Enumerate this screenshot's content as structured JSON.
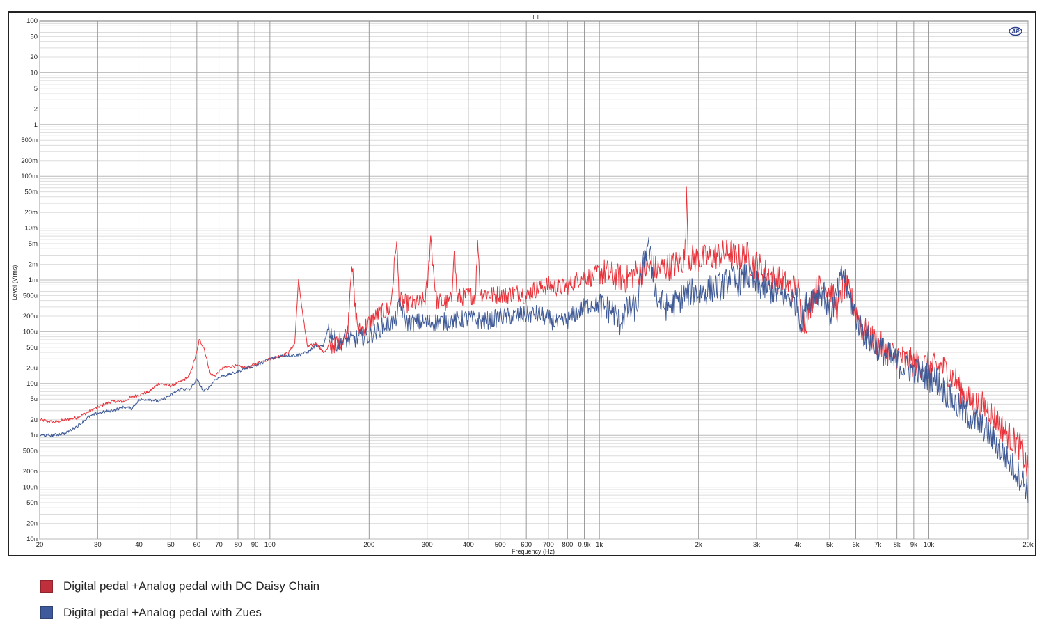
{
  "chart_data": {
    "type": "line",
    "title": "FFT",
    "xlabel": "Frequency (Hz)",
    "ylabel": "Level (Vrms)",
    "x_scale": "log",
    "y_scale": "log",
    "xlim": [
      20,
      20000
    ],
    "ylim": [
      1e-08,
      100
    ],
    "grid": true,
    "logo": "AP",
    "x_ticks": [
      {
        "v": 20,
        "label": "20"
      },
      {
        "v": 30,
        "label": "30"
      },
      {
        "v": 40,
        "label": "40"
      },
      {
        "v": 50,
        "label": "50"
      },
      {
        "v": 60,
        "label": "60"
      },
      {
        "v": 70,
        "label": "70"
      },
      {
        "v": 80,
        "label": "80"
      },
      {
        "v": 90,
        "label": "90"
      },
      {
        "v": 100,
        "label": "100"
      },
      {
        "v": 200,
        "label": "200"
      },
      {
        "v": 300,
        "label": "300"
      },
      {
        "v": 400,
        "label": "400"
      },
      {
        "v": 500,
        "label": "500"
      },
      {
        "v": 600,
        "label": "600"
      },
      {
        "v": 700,
        "label": "700"
      },
      {
        "v": 800,
        "label": "800"
      },
      {
        "v": 900,
        "label": "0.9k"
      },
      {
        "v": 1000,
        "label": "1k"
      },
      {
        "v": 2000,
        "label": "2k"
      },
      {
        "v": 3000,
        "label": "3k"
      },
      {
        "v": 4000,
        "label": "4k"
      },
      {
        "v": 5000,
        "label": "5k"
      },
      {
        "v": 6000,
        "label": "6k"
      },
      {
        "v": 7000,
        "label": "7k"
      },
      {
        "v": 8000,
        "label": "8k"
      },
      {
        "v": 9000,
        "label": "9k"
      },
      {
        "v": 10000,
        "label": "10k"
      },
      {
        "v": 20000,
        "label": "20k"
      }
    ],
    "y_ticks": [
      {
        "v": 100,
        "label": "100"
      },
      {
        "v": 50,
        "label": "50"
      },
      {
        "v": 20,
        "label": "20"
      },
      {
        "v": 10,
        "label": "10"
      },
      {
        "v": 5,
        "label": "5"
      },
      {
        "v": 2,
        "label": "2"
      },
      {
        "v": 1,
        "label": "1"
      },
      {
        "v": 0.5,
        "label": "500m"
      },
      {
        "v": 0.2,
        "label": "200m"
      },
      {
        "v": 0.1,
        "label": "100m"
      },
      {
        "v": 0.05,
        "label": "50m"
      },
      {
        "v": 0.02,
        "label": "20m"
      },
      {
        "v": 0.01,
        "label": "10m"
      },
      {
        "v": 0.005,
        "label": "5m"
      },
      {
        "v": 0.002,
        "label": "2m"
      },
      {
        "v": 0.001,
        "label": "1m"
      },
      {
        "v": 0.0005,
        "label": "500u"
      },
      {
        "v": 0.0002,
        "label": "200u"
      },
      {
        "v": 0.0001,
        "label": "100u"
      },
      {
        "v": 5e-05,
        "label": "50u"
      },
      {
        "v": 2e-05,
        "label": "20u"
      },
      {
        "v": 1e-05,
        "label": "10u"
      },
      {
        "v": 5e-06,
        "label": "5u"
      },
      {
        "v": 2e-06,
        "label": "2u"
      },
      {
        "v": 1e-06,
        "label": "1u"
      },
      {
        "v": 5e-07,
        "label": "500n"
      },
      {
        "v": 2e-07,
        "label": "200n"
      },
      {
        "v": 1e-07,
        "label": "100n"
      },
      {
        "v": 5e-08,
        "label": "50n"
      },
      {
        "v": 2e-08,
        "label": "20n"
      },
      {
        "v": 1e-08,
        "label": "10n"
      }
    ],
    "series": [
      {
        "name": "Digital pedal +Analog pedal with DC Daisy Chain",
        "color": "#e8333b",
        "x": [
          20,
          22,
          24,
          26,
          28,
          30,
          33,
          36,
          38,
          40,
          43,
          46,
          50,
          54,
          57,
          60,
          61,
          63,
          66,
          68,
          72,
          78,
          85,
          92,
          100,
          105,
          110,
          114,
          119,
          122,
          126,
          130,
          138,
          145,
          155,
          165,
          172,
          177,
          181,
          186,
          192,
          200,
          215,
          232,
          238,
          242,
          247,
          260,
          280,
          295,
          302,
          307,
          320,
          340,
          356,
          362,
          370,
          400,
          420,
          428,
          435,
          460,
          480,
          500,
          520,
          540,
          560,
          580,
          600,
          620,
          650,
          700,
          750,
          800,
          850,
          900,
          950,
          1000,
          1100,
          1200,
          1300,
          1400,
          1500,
          1600,
          1700,
          1800,
          1820,
          1840,
          1860,
          1900,
          2000,
          2100,
          2200,
          2300,
          2400,
          2500,
          2600,
          2700,
          2800,
          2900,
          3000,
          3200,
          3400,
          3600,
          3800,
          4000,
          4100,
          4200,
          4500,
          4800,
          5000,
          5300,
          5500,
          5700,
          6000,
          6300,
          6600,
          7000,
          7500,
          8000,
          8500,
          9000,
          9500,
          10000,
          10500,
          11000,
          12000,
          13000,
          14000,
          15000,
          16000,
          17000,
          18000,
          19000,
          20000
        ],
        "y": [
          2e-06,
          1.8e-06,
          2e-06,
          2.2e-06,
          2.8e-06,
          3.5e-06,
          4.5e-06,
          4.5e-06,
          5.5e-06,
          6e-06,
          7e-06,
          1e-05,
          9e-06,
          1.1e-05,
          1.4e-05,
          4e-05,
          7e-05,
          5e-05,
          1.5e-05,
          1.4e-05,
          2e-05,
          2.2e-05,
          2e-05,
          2.5e-05,
          3e-05,
          3.3e-05,
          3.5e-05,
          4e-05,
          6e-05,
          0.001,
          0.0002,
          5e-05,
          6e-05,
          4e-05,
          5.5e-05,
          7e-05,
          0.0001,
          0.0025,
          0.0003,
          0.0001,
          0.00012,
          0.00015,
          0.00022,
          0.00028,
          0.0015,
          0.0065,
          0.0004,
          0.00035,
          0.00035,
          0.0004,
          0.001,
          0.0075,
          0.0004,
          0.00035,
          0.0004,
          0.005,
          0.00045,
          0.0005,
          0.0005,
          0.006,
          0.00055,
          0.00055,
          0.0005,
          0.00055,
          0.0005,
          0.00055,
          0.00055,
          0.0006,
          0.00045,
          0.0006,
          0.0007,
          0.0008,
          0.0007,
          0.00075,
          0.001,
          0.0012,
          0.0011,
          0.0015,
          0.0012,
          0.001,
          0.0014,
          0.0017,
          0.0016,
          0.0018,
          0.002,
          0.0024,
          0.003,
          0.055,
          0.003,
          0.0026,
          0.0025,
          0.0026,
          0.0028,
          0.003,
          0.0032,
          0.0035,
          0.0026,
          0.0028,
          0.003,
          0.002,
          0.002,
          0.0014,
          0.0011,
          0.0009,
          0.0007,
          0.0007,
          0.00025,
          0.00014,
          0.0006,
          0.0008,
          0.0007,
          0.00025,
          0.0008,
          0.0006,
          0.00025,
          0.00012,
          8e-05,
          6e-05,
          4e-05,
          3.5e-05,
          2.8e-05,
          2.5e-05,
          2.4e-05,
          2.2e-05,
          2e-05,
          2.1e-05,
          1.2e-05,
          5e-06,
          4e-06,
          3.5e-06,
          2e-06,
          1.2e-06,
          8e-07,
          6e-07,
          2e-07
        ]
      },
      {
        "name": "Digital pedal +Analog pedal with Zues",
        "color": "#3f5a96",
        "x": [
          20,
          22,
          24,
          26,
          28,
          30,
          33,
          36,
          38,
          40,
          43,
          46,
          50,
          54,
          57,
          60,
          63,
          66,
          68,
          72,
          78,
          85,
          92,
          100,
          110,
          120,
          130,
          138,
          145,
          150,
          160,
          172,
          180,
          190,
          200,
          220,
          240,
          248,
          260,
          300,
          350,
          400,
          450,
          500,
          550,
          600,
          650,
          700,
          750,
          800,
          850,
          900,
          950,
          1000,
          1050,
          1100,
          1150,
          1200,
          1300,
          1400,
          1500,
          1600,
          1700,
          1800,
          1900,
          2000,
          2100,
          2200,
          2300,
          2400,
          2500,
          2600,
          2700,
          2800,
          2900,
          3000,
          3200,
          3400,
          3600,
          3800,
          4000,
          4100,
          4200,
          4500,
          4800,
          5000,
          5300,
          5500,
          5700,
          6000,
          6300,
          6600,
          7000,
          7500,
          8000,
          8500,
          9000,
          9500,
          10000,
          10500,
          11000,
          12000,
          13000,
          14000,
          15000,
          16000,
          17000,
          18000,
          19000,
          20000
        ],
        "y": [
          1e-06,
          1e-06,
          1.1e-06,
          1.5e-06,
          2.2e-06,
          2.7e-06,
          3e-06,
          3.5e-06,
          3.3e-06,
          4.8e-06,
          5e-06,
          4.5e-06,
          6e-06,
          8e-06,
          7.5e-06,
          1.2e-05,
          7e-06,
          9e-06,
          1.2e-05,
          1.4e-05,
          1.6e-05,
          2e-05,
          2.3e-05,
          3e-05,
          3.5e-05,
          3.5e-05,
          4e-05,
          5.5e-05,
          5e-05,
          0.00012,
          6e-05,
          7e-05,
          7e-05,
          8e-05,
          8e-05,
          0.00013,
          0.00016,
          0.00035,
          0.00015,
          0.00015,
          0.00016,
          0.00018,
          0.00016,
          0.00019,
          0.0002,
          0.00021,
          0.00022,
          0.00018,
          0.00014,
          0.00017,
          0.00023,
          0.0003,
          0.00035,
          0.00033,
          0.00028,
          0.00025,
          0.00015,
          0.00025,
          0.0003,
          0.0055,
          0.0004,
          0.0003,
          0.00035,
          0.0005,
          0.0006,
          0.00055,
          0.0006,
          0.0007,
          0.00075,
          0.0008,
          0.0013,
          0.0008,
          0.001,
          0.0012,
          0.001,
          0.0008,
          0.0007,
          0.0006,
          0.0005,
          0.00045,
          0.00035,
          0.00013,
          0.0003,
          0.00055,
          0.0006,
          0.0002,
          0.0006,
          0.0015,
          0.0005,
          0.0002,
          0.0001,
          7e-05,
          5e-05,
          3.5e-05,
          2.5e-05,
          2e-05,
          1.8e-05,
          1.6e-05,
          1.3e-05,
          1.2e-05,
          8e-06,
          4e-06,
          2.5e-06,
          1.8e-06,
          1.2e-06,
          7e-07,
          4e-07,
          2.5e-07,
          1.5e-07,
          9e-08
        ]
      }
    ]
  },
  "legend": [
    {
      "label": "Digital pedal +Analog pedal with DC Daisy Chain",
      "color": "#c0303c"
    },
    {
      "label": "Digital pedal +Analog pedal with Zues",
      "color": "#3f5a9c"
    }
  ]
}
